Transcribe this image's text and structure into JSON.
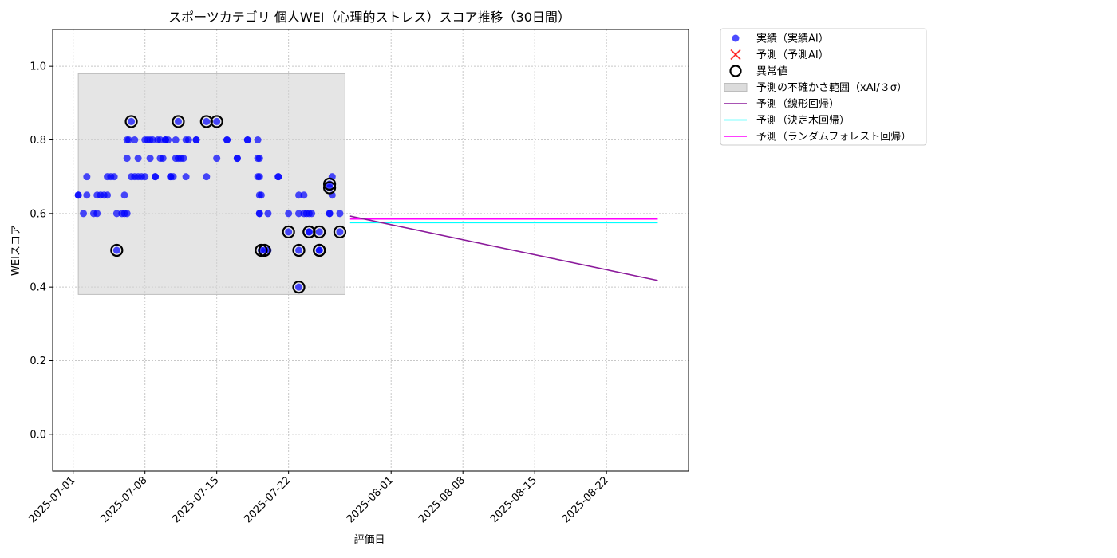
{
  "chart_data": {
    "type": "scatter",
    "title": "スポーツカテゴリ 個人WEI（心理的ストレス）スコア推移（30日間）",
    "xlabel": "評価日",
    "ylabel": "WEIスコア",
    "xlim": [
      "2025-06-29",
      "2025-08-30"
    ],
    "ylim": [
      -0.1,
      1.1
    ],
    "y_ticks": [
      0.0,
      0.2,
      0.4,
      0.6,
      0.8,
      1.0
    ],
    "y_tick_labels": [
      "0.0",
      "0.2",
      "0.4",
      "0.6",
      "0.8",
      "1.0"
    ],
    "x_ticks": [
      "2025-07-01",
      "2025-07-08",
      "2025-07-15",
      "2025-07-22",
      "2025-08-01",
      "2025-08-08",
      "2025-08-15",
      "2025-08-22"
    ],
    "grid": true,
    "legend_position": "outside-top-right",
    "colors": {
      "actual": "#0000ff",
      "predicted": "#ff0000",
      "band": "#d3d3d3",
      "linear": "#8b1a9b",
      "tree": "#00ffff",
      "forest": "#ff00ff"
    },
    "legend": [
      {
        "label": "実績（実績AI）",
        "kind": "dot"
      },
      {
        "label": "予測（予測AI）",
        "kind": "cross"
      },
      {
        "label": "異常値",
        "kind": "ring"
      },
      {
        "label": "予測の不確かさ範囲（xAI/３σ）",
        "kind": "band"
      },
      {
        "label": "予測（線形回帰）",
        "kind": "line-linear"
      },
      {
        "label": "予測（決定木回帰）",
        "kind": "line-tree"
      },
      {
        "label": "予測（ランダムフォレスト回帰）",
        "kind": "line-forest"
      }
    ],
    "uncertainty_band": {
      "x": [
        "2025-07-01T12:00",
        "2025-07-27T12:00"
      ],
      "y": [
        0.38,
        0.98
      ]
    },
    "actual": [
      [
        "2025-07-01T12:00",
        0.65
      ],
      [
        "2025-07-01T12:00",
        0.65
      ],
      [
        "2025-07-02",
        0.6
      ],
      [
        "2025-07-02T08:00",
        0.65
      ],
      [
        "2025-07-02T08:00",
        0.7
      ],
      [
        "2025-07-03",
        0.6
      ],
      [
        "2025-07-03T08:00",
        0.6
      ],
      [
        "2025-07-03T08:00",
        0.65
      ],
      [
        "2025-07-03T16:00",
        0.65
      ],
      [
        "2025-07-04",
        0.65
      ],
      [
        "2025-07-04T08:00",
        0.65
      ],
      [
        "2025-07-04T08:00",
        0.7
      ],
      [
        "2025-07-04T16:00",
        0.7
      ],
      [
        "2025-07-05",
        0.7
      ],
      [
        "2025-07-05T06:00",
        0.6
      ],
      [
        "2025-07-05T06:00",
        0.5
      ],
      [
        "2025-07-05T18:00",
        0.6
      ],
      [
        "2025-07-06",
        0.6
      ],
      [
        "2025-07-06",
        0.65
      ],
      [
        "2025-07-06T06:00",
        0.6
      ],
      [
        "2025-07-06T06:00",
        0.75
      ],
      [
        "2025-07-06T06:00",
        0.8
      ],
      [
        "2025-07-06T10:00",
        0.8
      ],
      [
        "2025-07-06T16:00",
        0.7
      ],
      [
        "2025-07-06T16:00",
        0.85
      ],
      [
        "2025-07-07",
        0.8
      ],
      [
        "2025-07-07",
        0.7
      ],
      [
        "2025-07-07T08:00",
        0.75
      ],
      [
        "2025-07-07T08:00",
        0.7
      ],
      [
        "2025-07-07T16:00",
        0.7
      ],
      [
        "2025-07-08",
        0.7
      ],
      [
        "2025-07-08",
        0.8
      ],
      [
        "2025-07-08T06:00",
        0.8
      ],
      [
        "2025-07-08T12:00",
        0.75
      ],
      [
        "2025-07-08T12:00",
        0.8
      ],
      [
        "2025-07-08T18:00",
        0.8
      ],
      [
        "2025-07-09",
        0.7
      ],
      [
        "2025-07-09",
        0.7
      ],
      [
        "2025-07-09T06:00",
        0.8
      ],
      [
        "2025-07-09T12:00",
        0.75
      ],
      [
        "2025-07-09T12:00",
        0.8
      ],
      [
        "2025-07-09T18:00",
        0.75
      ],
      [
        "2025-07-10",
        0.8
      ],
      [
        "2025-07-10",
        0.8
      ],
      [
        "2025-07-10T06:00",
        0.8
      ],
      [
        "2025-07-10T12:00",
        0.7
      ],
      [
        "2025-07-10T12:00",
        0.7
      ],
      [
        "2025-07-10T18:00",
        0.7
      ],
      [
        "2025-07-11",
        0.75
      ],
      [
        "2025-07-11",
        0.8
      ],
      [
        "2025-07-11T06:00",
        0.75
      ],
      [
        "2025-07-11T06:00",
        0.85
      ],
      [
        "2025-07-11T12:00",
        0.75
      ],
      [
        "2025-07-11T18:00",
        0.75
      ],
      [
        "2025-07-12",
        0.8
      ],
      [
        "2025-07-12",
        0.7
      ],
      [
        "2025-07-12T06:00",
        0.8
      ],
      [
        "2025-07-13",
        0.8
      ],
      [
        "2025-07-13",
        0.8
      ],
      [
        "2025-07-14",
        0.7
      ],
      [
        "2025-07-14",
        0.85
      ],
      [
        "2025-07-15",
        0.85
      ],
      [
        "2025-07-15",
        0.75
      ],
      [
        "2025-07-16",
        0.8
      ],
      [
        "2025-07-16",
        0.8
      ],
      [
        "2025-07-17",
        0.75
      ],
      [
        "2025-07-17",
        0.75
      ],
      [
        "2025-07-18",
        0.8
      ],
      [
        "2025-07-18",
        0.8
      ],
      [
        "2025-07-19",
        0.8
      ],
      [
        "2025-07-19",
        0.7
      ],
      [
        "2025-07-19",
        0.75
      ],
      [
        "2025-07-19T04:00",
        0.65
      ],
      [
        "2025-07-19T04:00",
        0.6
      ],
      [
        "2025-07-19T04:00",
        0.6
      ],
      [
        "2025-07-19T04:00",
        0.75
      ],
      [
        "2025-07-19T04:00",
        0.7
      ],
      [
        "2025-07-19T08:00",
        0.5
      ],
      [
        "2025-07-19T08:00",
        0.65
      ],
      [
        "2025-07-19T16:00",
        0.5
      ],
      [
        "2025-07-20",
        0.6
      ],
      [
        "2025-07-20",
        0.5
      ],
      [
        "2025-07-21",
        0.7
      ],
      [
        "2025-07-21",
        0.7
      ],
      [
        "2025-07-22",
        0.55
      ],
      [
        "2025-07-22",
        0.6
      ],
      [
        "2025-07-23",
        0.65
      ],
      [
        "2025-07-23",
        0.6
      ],
      [
        "2025-07-23",
        0.5
      ],
      [
        "2025-07-23",
        0.4
      ],
      [
        "2025-07-23T12:00",
        0.65
      ],
      [
        "2025-07-23T12:00",
        0.6
      ],
      [
        "2025-07-23T18:00",
        0.6
      ],
      [
        "2025-07-24",
        0.6
      ],
      [
        "2025-07-24",
        0.55
      ],
      [
        "2025-07-24",
        0.55
      ],
      [
        "2025-07-24T06:00",
        0.6
      ],
      [
        "2025-07-25",
        0.5
      ],
      [
        "2025-07-25",
        0.5
      ],
      [
        "2025-07-25",
        0.55
      ],
      [
        "2025-07-26",
        0.6
      ],
      [
        "2025-07-26",
        0.67
      ],
      [
        "2025-07-26",
        0.68
      ],
      [
        "2025-07-26",
        0.6
      ],
      [
        "2025-07-26T06:00",
        0.7
      ],
      [
        "2025-07-26T06:00",
        0.65
      ],
      [
        "2025-07-27",
        0.55
      ],
      [
        "2025-07-27",
        0.6
      ]
    ],
    "anomalies": [
      [
        "2025-07-05T06:00",
        0.5
      ],
      [
        "2025-07-06T16:00",
        0.85
      ],
      [
        "2025-07-11T06:00",
        0.85
      ],
      [
        "2025-07-14",
        0.85
      ],
      [
        "2025-07-15",
        0.85
      ],
      [
        "2025-07-19T08:00",
        0.5
      ],
      [
        "2025-07-19T16:00",
        0.5
      ],
      [
        "2025-07-22",
        0.55
      ],
      [
        "2025-07-23",
        0.5
      ],
      [
        "2025-07-23",
        0.4
      ],
      [
        "2025-07-24",
        0.55
      ],
      [
        "2025-07-24",
        0.55
      ],
      [
        "2025-07-25",
        0.5
      ],
      [
        "2025-07-25",
        0.5
      ],
      [
        "2025-07-25",
        0.55
      ],
      [
        "2025-07-26",
        0.67
      ],
      [
        "2025-07-26",
        0.68
      ],
      [
        "2025-07-27",
        0.55
      ]
    ],
    "predictions": {
      "linear": {
        "x": [
          "2025-07-28",
          "2025-08-27"
        ],
        "y": [
          0.593,
          0.418
        ]
      },
      "tree": {
        "x": [
          "2025-07-28",
          "2025-08-27"
        ],
        "y": [
          0.575,
          0.575
        ]
      },
      "forest": {
        "x": [
          "2025-07-28",
          "2025-08-27"
        ],
        "y": [
          0.585,
          0.585
        ]
      }
    }
  }
}
